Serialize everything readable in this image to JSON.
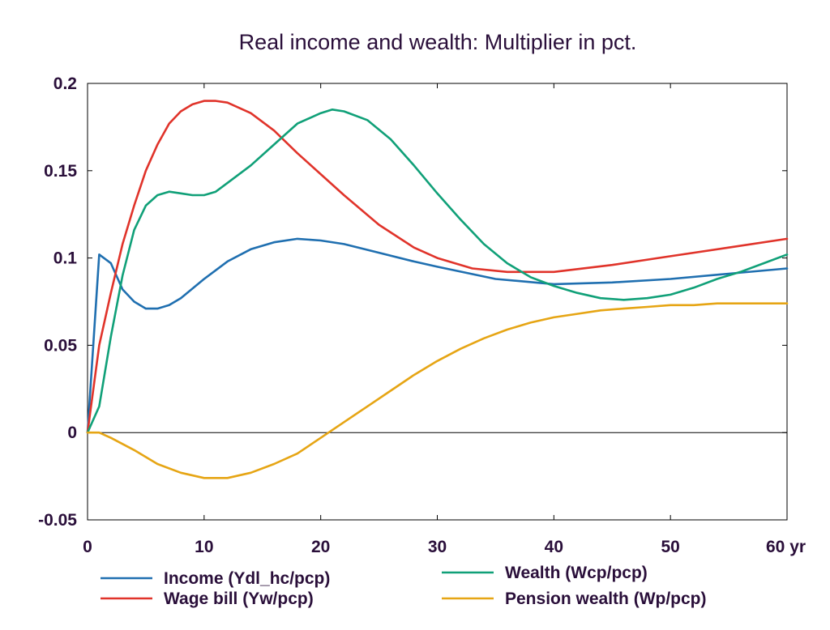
{
  "chart_data": {
    "type": "line",
    "title": "Real income and wealth: Multiplier in pct.",
    "xlabel": "",
    "ylabel": "",
    "x_unit_label": "yr",
    "xlim": [
      0,
      60
    ],
    "ylim": [
      -0.05,
      0.2
    ],
    "x_ticks": [
      0,
      10,
      20,
      30,
      40,
      50,
      60
    ],
    "x_tick_labels": [
      "0",
      "10",
      "20",
      "30",
      "40",
      "50",
      "60 yr"
    ],
    "y_ticks": [
      -0.05,
      0,
      0.05,
      0.1,
      0.15,
      0.2
    ],
    "y_tick_labels": [
      "-0.05",
      "0",
      "0.05",
      "0.1",
      "0.15",
      "0.2"
    ],
    "grid": false,
    "zero_line": true,
    "legend_position": "bottom",
    "series": [
      {
        "name": "Income (Ydl_hc/pcp)",
        "color": "#1f6fb0",
        "points": [
          [
            0,
            0
          ],
          [
            1,
            0.102
          ],
          [
            2,
            0.097
          ],
          [
            3,
            0.082
          ],
          [
            4,
            0.075
          ],
          [
            5,
            0.071
          ],
          [
            6,
            0.071
          ],
          [
            7,
            0.073
          ],
          [
            8,
            0.077
          ],
          [
            10,
            0.088
          ],
          [
            12,
            0.098
          ],
          [
            14,
            0.105
          ],
          [
            16,
            0.109
          ],
          [
            18,
            0.111
          ],
          [
            20,
            0.11
          ],
          [
            22,
            0.108
          ],
          [
            25,
            0.103
          ],
          [
            28,
            0.098
          ],
          [
            30,
            0.095
          ],
          [
            35,
            0.088
          ],
          [
            40,
            0.085
          ],
          [
            45,
            0.086
          ],
          [
            50,
            0.088
          ],
          [
            55,
            0.091
          ],
          [
            60,
            0.094
          ]
        ]
      },
      {
        "name": "Wage bill (Yw/pcp)",
        "color": "#e0332a",
        "points": [
          [
            0,
            0
          ],
          [
            1,
            0.05
          ],
          [
            2,
            0.08
          ],
          [
            3,
            0.108
          ],
          [
            4,
            0.13
          ],
          [
            5,
            0.15
          ],
          [
            6,
            0.165
          ],
          [
            7,
            0.177
          ],
          [
            8,
            0.184
          ],
          [
            9,
            0.188
          ],
          [
            10,
            0.19
          ],
          [
            11,
            0.19
          ],
          [
            12,
            0.189
          ],
          [
            14,
            0.183
          ],
          [
            16,
            0.173
          ],
          [
            18,
            0.16
          ],
          [
            20,
            0.148
          ],
          [
            22,
            0.136
          ],
          [
            25,
            0.119
          ],
          [
            28,
            0.106
          ],
          [
            30,
            0.1
          ],
          [
            33,
            0.094
          ],
          [
            36,
            0.092
          ],
          [
            40,
            0.092
          ],
          [
            45,
            0.096
          ],
          [
            50,
            0.101
          ],
          [
            55,
            0.106
          ],
          [
            60,
            0.111
          ]
        ]
      },
      {
        "name": "Wealth (Wcp/pcp)",
        "color": "#10a078",
        "points": [
          [
            0,
            0
          ],
          [
            1,
            0.015
          ],
          [
            2,
            0.055
          ],
          [
            3,
            0.09
          ],
          [
            4,
            0.116
          ],
          [
            5,
            0.13
          ],
          [
            6,
            0.136
          ],
          [
            7,
            0.138
          ],
          [
            8,
            0.137
          ],
          [
            9,
            0.136
          ],
          [
            10,
            0.136
          ],
          [
            11,
            0.138
          ],
          [
            12,
            0.143
          ],
          [
            14,
            0.153
          ],
          [
            16,
            0.165
          ],
          [
            18,
            0.177
          ],
          [
            20,
            0.183
          ],
          [
            21,
            0.185
          ],
          [
            22,
            0.184
          ],
          [
            24,
            0.179
          ],
          [
            26,
            0.168
          ],
          [
            28,
            0.153
          ],
          [
            30,
            0.137
          ],
          [
            32,
            0.122
          ],
          [
            34,
            0.108
          ],
          [
            36,
            0.097
          ],
          [
            38,
            0.089
          ],
          [
            40,
            0.084
          ],
          [
            42,
            0.08
          ],
          [
            44,
            0.077
          ],
          [
            46,
            0.076
          ],
          [
            48,
            0.077
          ],
          [
            50,
            0.079
          ],
          [
            52,
            0.083
          ],
          [
            54,
            0.088
          ],
          [
            56,
            0.092
          ],
          [
            58,
            0.097
          ],
          [
            60,
            0.102
          ]
        ]
      },
      {
        "name": "Pension wealth (Wp/pcp)",
        "color": "#e6a514",
        "points": [
          [
            0,
            0
          ],
          [
            1,
            0
          ],
          [
            2,
            -0.003
          ],
          [
            4,
            -0.01
          ],
          [
            6,
            -0.018
          ],
          [
            8,
            -0.023
          ],
          [
            10,
            -0.026
          ],
          [
            11,
            -0.026
          ],
          [
            12,
            -0.026
          ],
          [
            14,
            -0.023
          ],
          [
            16,
            -0.018
          ],
          [
            18,
            -0.012
          ],
          [
            20,
            -0.003
          ],
          [
            22,
            0.006
          ],
          [
            24,
            0.015
          ],
          [
            26,
            0.024
          ],
          [
            28,
            0.033
          ],
          [
            30,
            0.041
          ],
          [
            32,
            0.048
          ],
          [
            34,
            0.054
          ],
          [
            36,
            0.059
          ],
          [
            38,
            0.063
          ],
          [
            40,
            0.066
          ],
          [
            42,
            0.068
          ],
          [
            44,
            0.07
          ],
          [
            46,
            0.071
          ],
          [
            48,
            0.072
          ],
          [
            50,
            0.073
          ],
          [
            52,
            0.073
          ],
          [
            54,
            0.074
          ],
          [
            56,
            0.074
          ],
          [
            58,
            0.074
          ],
          [
            60,
            0.074
          ]
        ]
      }
    ]
  }
}
